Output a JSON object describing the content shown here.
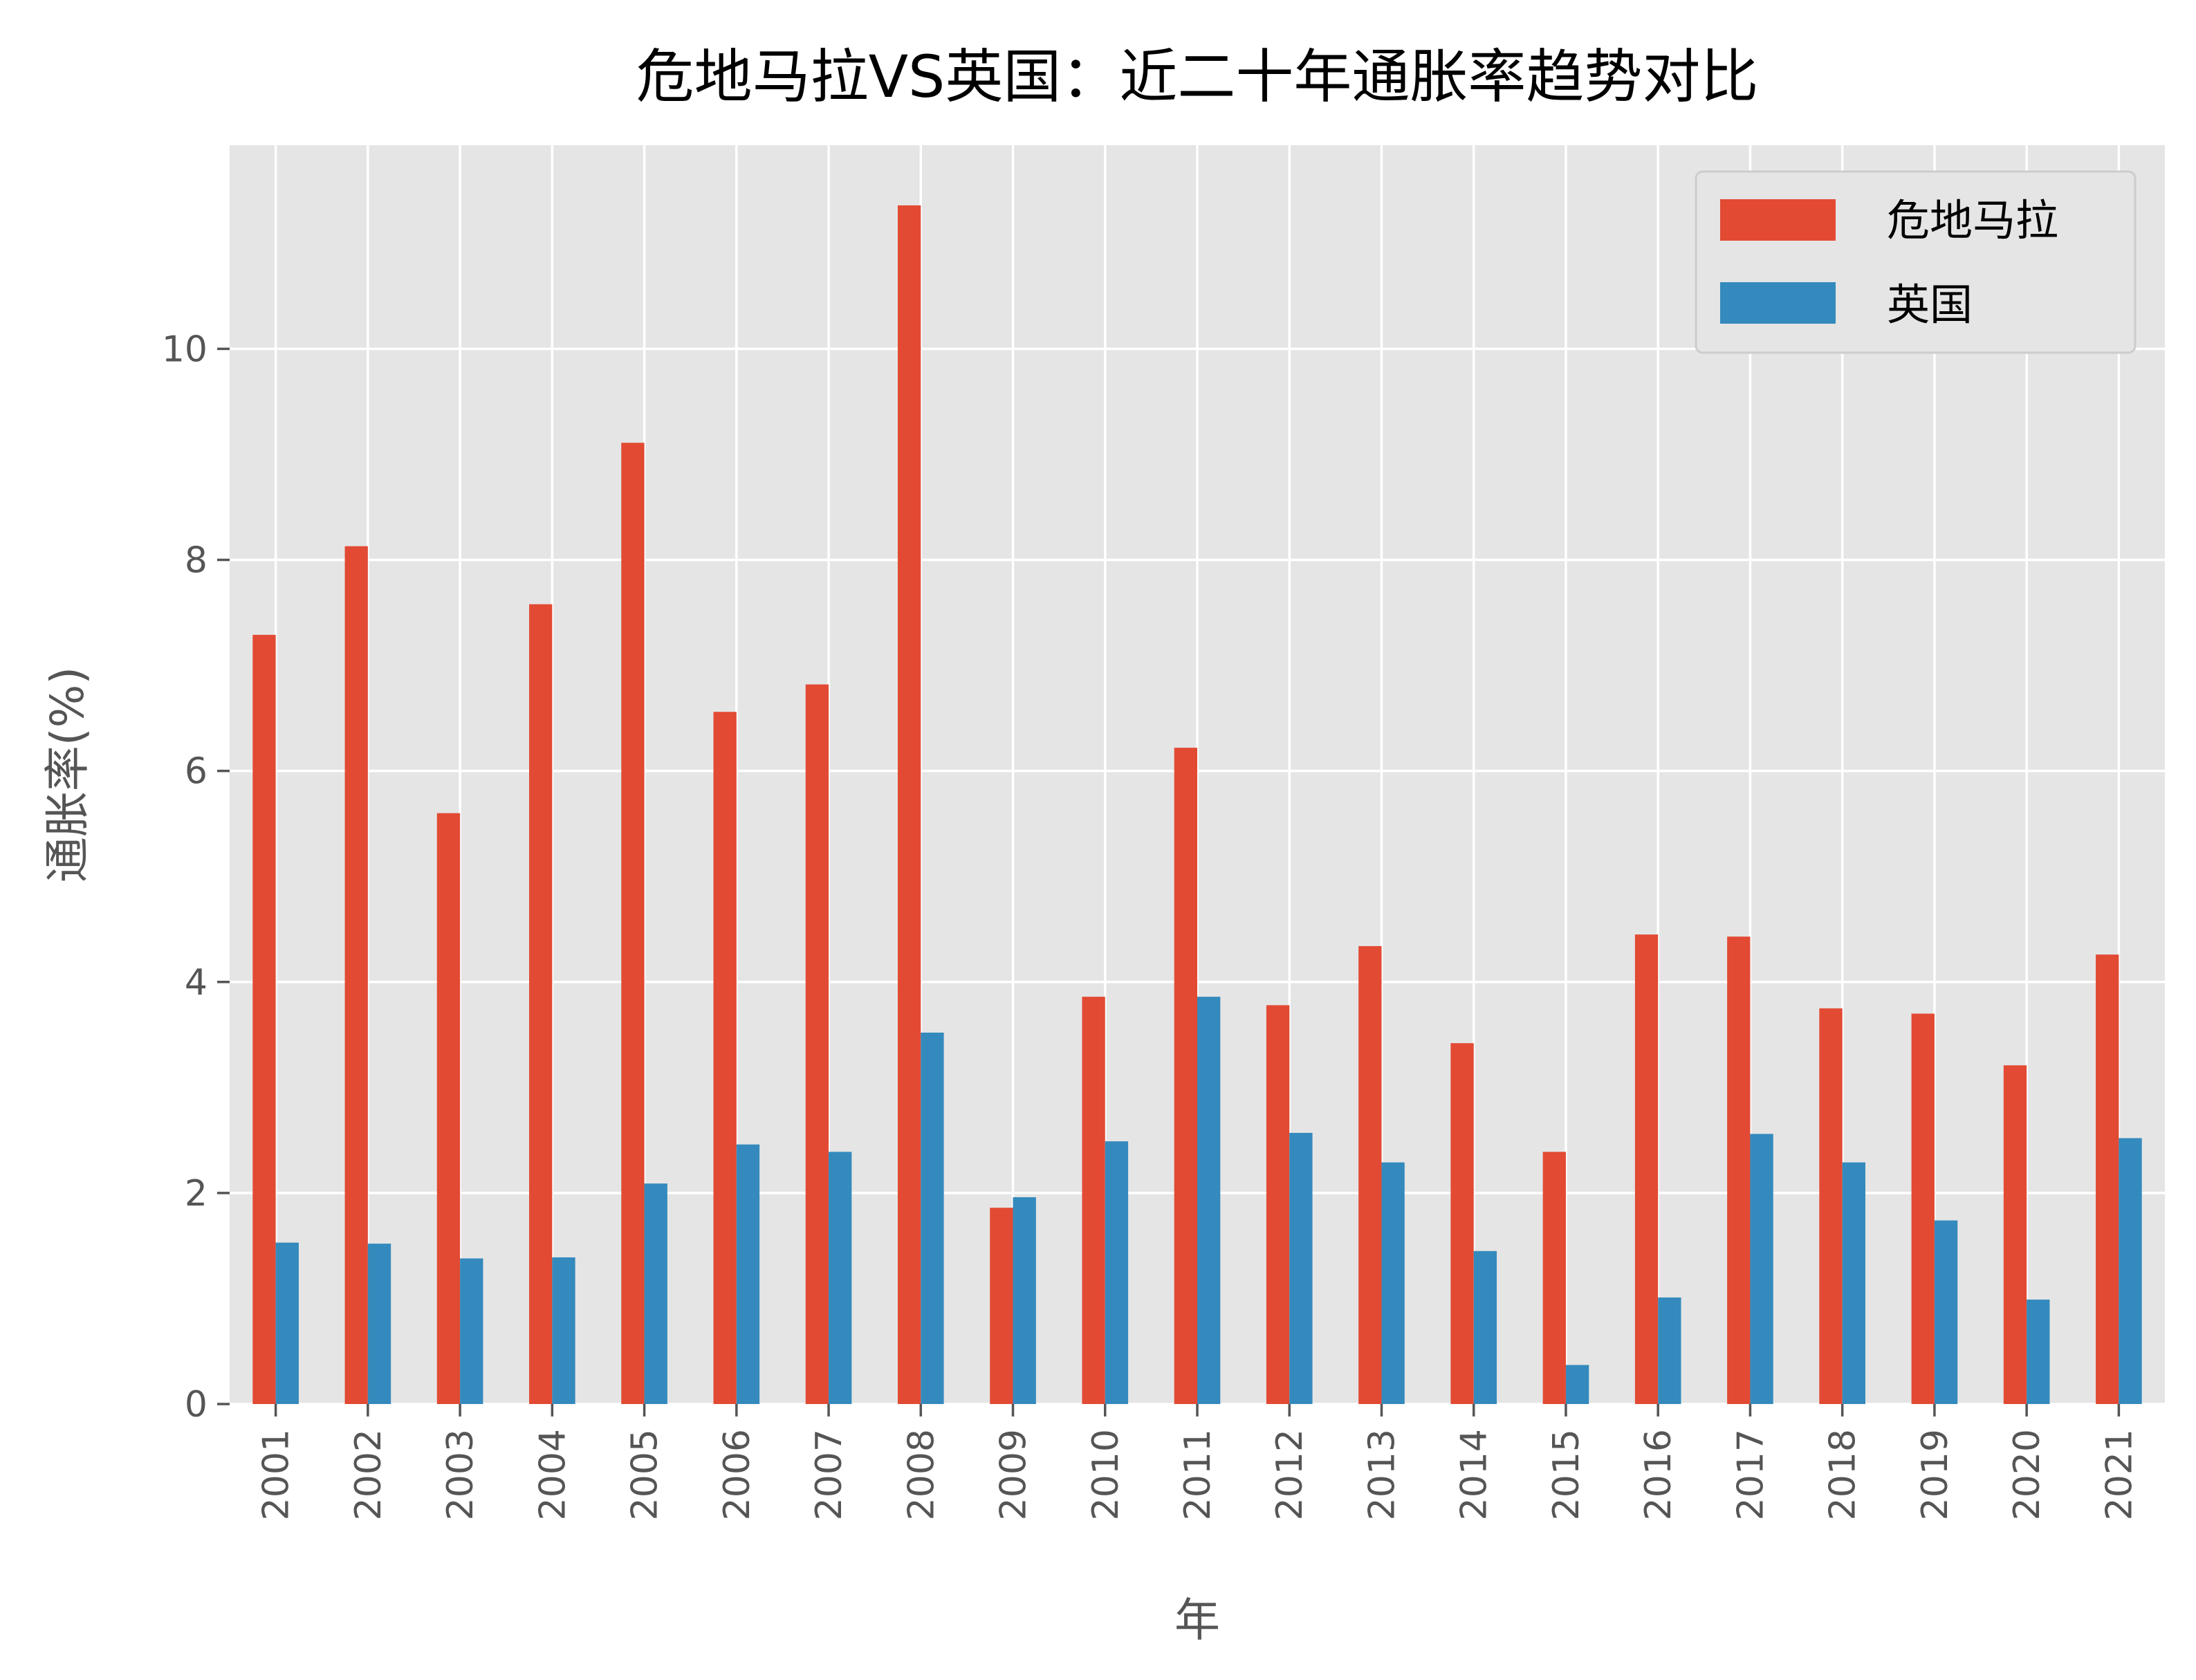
{
  "chart_data": {
    "type": "bar",
    "title": "危地马拉VS英国：近二十年通胀率趋势对比",
    "xlabel": "年",
    "ylabel": "通胀率(%)",
    "categories": [
      "2001",
      "2002",
      "2003",
      "2004",
      "2005",
      "2006",
      "2007",
      "2008",
      "2009",
      "2010",
      "2011",
      "2012",
      "2013",
      "2014",
      "2015",
      "2016",
      "2017",
      "2018",
      "2019",
      "2020",
      "2021"
    ],
    "series": [
      {
        "name": "危地马拉",
        "color": "#E24A33",
        "values": [
          7.29,
          8.13,
          5.6,
          7.58,
          9.11,
          6.56,
          6.82,
          11.36,
          1.86,
          3.86,
          6.22,
          3.78,
          4.34,
          3.42,
          2.39,
          4.45,
          4.43,
          3.75,
          3.7,
          3.21,
          4.26
        ]
      },
      {
        "name": "英国",
        "color": "#348ABD",
        "values": [
          1.53,
          1.52,
          1.38,
          1.39,
          2.09,
          2.46,
          2.39,
          3.52,
          1.96,
          2.49,
          3.86,
          2.57,
          2.29,
          1.45,
          0.37,
          1.01,
          2.56,
          2.29,
          1.74,
          0.99,
          2.52
        ]
      }
    ],
    "ylim": [
      0,
      11.93
    ],
    "yticks": [
      0,
      2,
      4,
      6,
      8,
      10
    ],
    "grid": true,
    "legend_position": "top-right",
    "background": "#E5E5E5"
  }
}
